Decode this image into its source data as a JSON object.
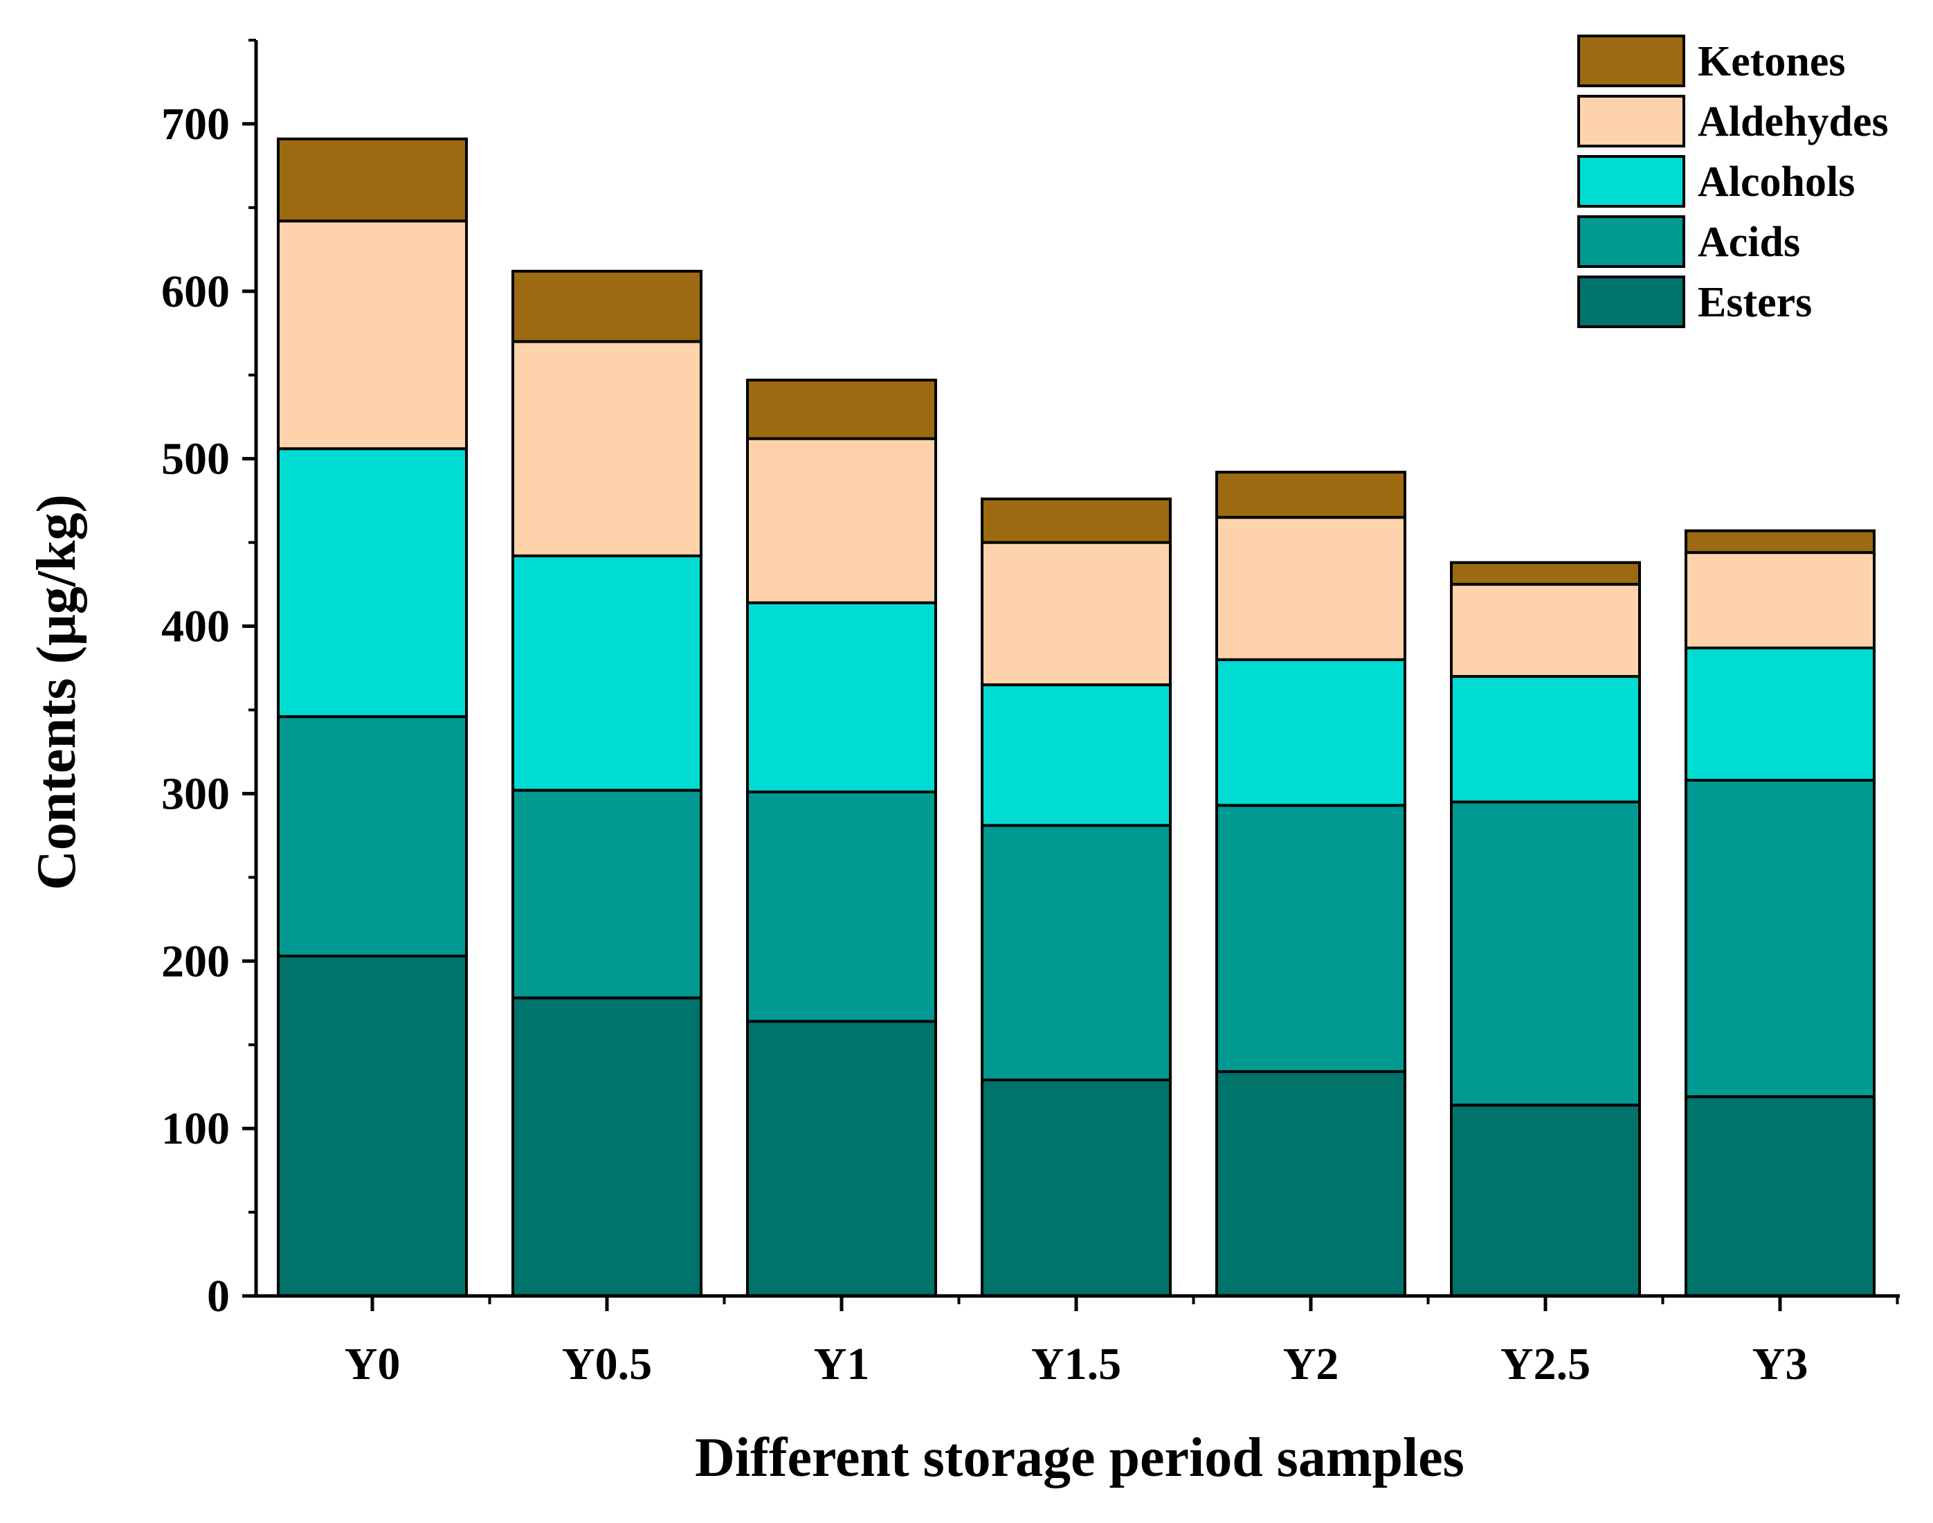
{
  "chart_data": {
    "type": "bar",
    "stacked": true,
    "categories": [
      "Y0",
      "Y0.5",
      "Y1",
      "Y1.5",
      "Y2",
      "Y2.5",
      "Y3"
    ],
    "series": [
      {
        "name": "Esters",
        "color": "#00736B",
        "values": [
          203,
          178,
          164,
          129,
          134,
          114,
          119
        ]
      },
      {
        "name": "Acids",
        "color": "#009A93",
        "values": [
          143,
          124,
          137,
          152,
          159,
          181,
          189
        ]
      },
      {
        "name": "Alcohols",
        "color": "#00DCD2",
        "values": [
          160,
          140,
          113,
          84,
          87,
          75,
          79
        ]
      },
      {
        "name": "Aldehydes",
        "color": "#FED3AB",
        "values": [
          136,
          128,
          98,
          85,
          85,
          55,
          57
        ]
      },
      {
        "name": "Ketones",
        "color": "#9C6A10",
        "values": [
          49,
          42,
          35,
          26,
          27,
          13,
          13
        ]
      }
    ],
    "xlabel": "Different storage period samples",
    "ylabel": "Contents (μg/kg)",
    "ylim": [
      0,
      750
    ],
    "yticks": [
      0,
      100,
      200,
      300,
      400,
      500,
      600,
      700
    ],
    "legend_position": "top-right",
    "grid": false
  }
}
